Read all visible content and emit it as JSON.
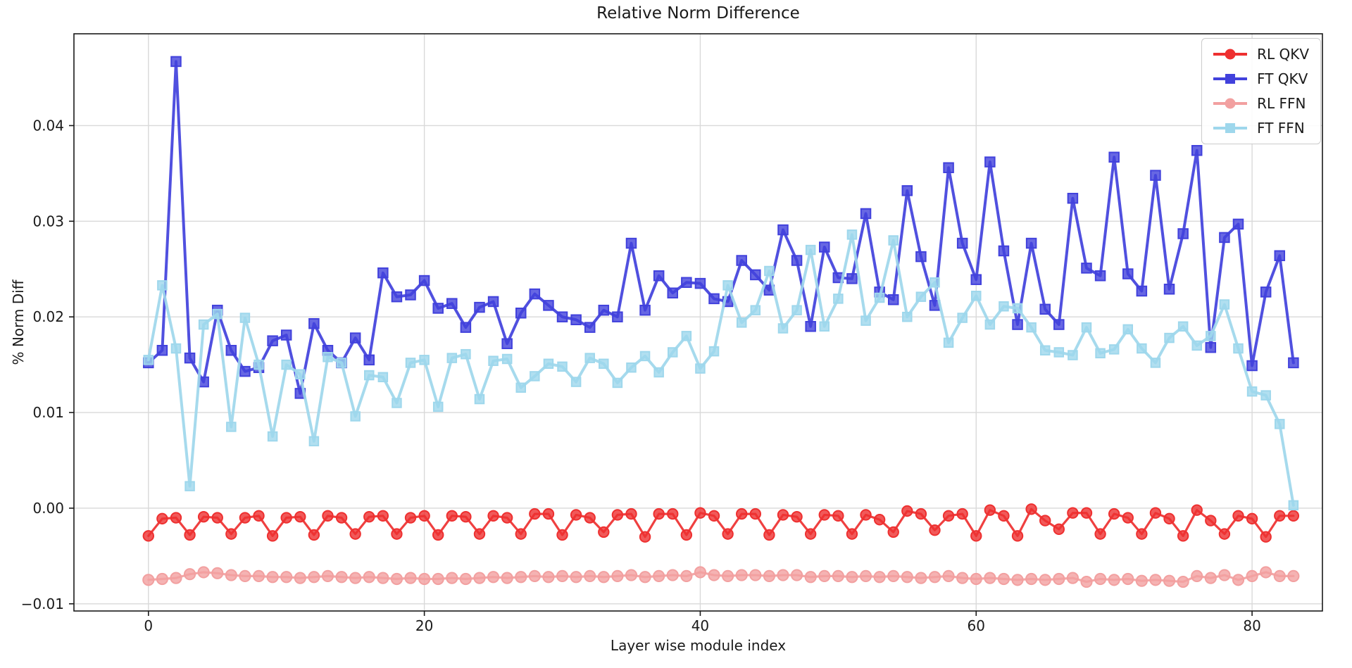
{
  "page_title": "Relative Norm Difference",
  "chart_data": {
    "type": "line",
    "title": "Relative Norm Difference",
    "xlabel": "Layer wise module index",
    "ylabel": "% Norm Diff",
    "grid": true,
    "legend_position": "upper right",
    "xlim": [
      -5.4,
      85.1
    ],
    "ylim": [
      -0.01075,
      0.0496
    ],
    "xticks": {
      "values": [
        0,
        20,
        40,
        60,
        80
      ],
      "labels": [
        "0",
        "20",
        "40",
        "60",
        "80"
      ]
    },
    "yticks": {
      "values": [
        -0.01,
        0.0,
        0.01,
        0.02,
        0.03,
        0.04
      ],
      "labels": [
        "−0.01",
        "0.00",
        "0.01",
        "0.02",
        "0.03",
        "0.04"
      ]
    },
    "x": [
      0,
      1,
      2,
      3,
      4,
      5,
      6,
      7,
      8,
      9,
      10,
      11,
      12,
      13,
      14,
      15,
      16,
      17,
      18,
      19,
      20,
      21,
      22,
      23,
      24,
      25,
      26,
      27,
      28,
      29,
      30,
      31,
      32,
      33,
      34,
      35,
      36,
      37,
      38,
      39,
      40,
      41,
      42,
      43,
      44,
      45,
      46,
      47,
      48,
      49,
      50,
      51,
      52,
      53,
      54,
      55,
      56,
      57,
      58,
      59,
      60,
      61,
      62,
      63,
      64,
      65,
      66,
      67,
      68,
      69,
      70,
      71,
      72,
      73,
      74,
      75,
      76,
      77,
      78,
      79,
      80,
      81,
      82,
      83
    ],
    "series": [
      {
        "name": "RL QKV",
        "color": "#ee3030",
        "marker": "circle",
        "values": [
          -0.0029,
          -0.0011,
          -0.001,
          -0.0028,
          -0.0009,
          -0.001,
          -0.0027,
          -0.001,
          -0.0008,
          -0.0029,
          -0.001,
          -0.0009,
          -0.0028,
          -0.0008,
          -0.001,
          -0.0027,
          -0.0009,
          -0.0008,
          -0.0027,
          -0.001,
          -0.0008,
          -0.0028,
          -0.0008,
          -0.0009,
          -0.0027,
          -0.0008,
          -0.001,
          -0.0027,
          -0.0006,
          -0.0006,
          -0.0028,
          -0.0007,
          -0.001,
          -0.0025,
          -0.0007,
          -0.0006,
          -0.003,
          -0.0006,
          -0.0006,
          -0.0028,
          -0.0005,
          -0.0008,
          -0.0027,
          -0.0006,
          -0.0006,
          -0.0028,
          -0.0007,
          -0.0009,
          -0.0027,
          -0.0007,
          -0.0008,
          -0.0027,
          -0.0007,
          -0.0012,
          -0.0025,
          -0.0003,
          -0.0006,
          -0.0023,
          -0.0008,
          -0.0006,
          -0.0029,
          -0.0002,
          -0.0008,
          -0.0029,
          -0.0001,
          -0.0013,
          -0.0022,
          -0.0005,
          -0.0005,
          -0.0027,
          -0.0006,
          -0.001,
          -0.0027,
          -0.0005,
          -0.0011,
          -0.0029,
          -0.0002,
          -0.0013,
          -0.0027,
          -0.0008,
          -0.0011,
          -0.003,
          -0.0008,
          -0.0008
        ]
      },
      {
        "name": "FT QKV",
        "color": "#4141dc",
        "marker": "square",
        "values": [
          0.0152,
          0.0165,
          0.0467,
          0.0157,
          0.0132,
          0.0207,
          0.0165,
          0.0143,
          0.0147,
          0.0175,
          0.0181,
          0.012,
          0.0193,
          0.0165,
          0.0152,
          0.0178,
          0.0155,
          0.0246,
          0.0221,
          0.0223,
          0.0238,
          0.0209,
          0.0214,
          0.0189,
          0.021,
          0.0216,
          0.0172,
          0.0204,
          0.0224,
          0.0212,
          0.02,
          0.0197,
          0.0189,
          0.0207,
          0.02,
          0.0277,
          0.0207,
          0.0243,
          0.0225,
          0.0236,
          0.0235,
          0.0219,
          0.0216,
          0.0259,
          0.0244,
          0.0228,
          0.0291,
          0.0259,
          0.019,
          0.0273,
          0.0241,
          0.024,
          0.0308,
          0.0226,
          0.0218,
          0.0332,
          0.0263,
          0.0212,
          0.0356,
          0.0277,
          0.0239,
          0.0362,
          0.0269,
          0.0192,
          0.0277,
          0.0208,
          0.0192,
          0.0324,
          0.0251,
          0.0243,
          0.0367,
          0.0245,
          0.0227,
          0.0348,
          0.0229,
          0.0287,
          0.0374,
          0.0168,
          0.0283,
          0.0297,
          0.0149,
          0.0226,
          0.0264,
          0.0152
        ]
      },
      {
        "name": "RL FFN",
        "color": "#f2a0a0",
        "marker": "circle",
        "values": [
          -0.0075,
          -0.0074,
          -0.0073,
          -0.0069,
          -0.0067,
          -0.0068,
          -0.007,
          -0.0071,
          -0.0071,
          -0.0072,
          -0.0072,
          -0.0073,
          -0.0072,
          -0.0071,
          -0.0072,
          -0.0073,
          -0.0072,
          -0.0073,
          -0.0074,
          -0.0073,
          -0.0074,
          -0.0074,
          -0.0073,
          -0.0074,
          -0.0073,
          -0.0072,
          -0.0073,
          -0.0072,
          -0.0071,
          -0.0072,
          -0.0071,
          -0.0072,
          -0.0071,
          -0.0072,
          -0.0071,
          -0.007,
          -0.0072,
          -0.0071,
          -0.007,
          -0.0071,
          -0.0067,
          -0.007,
          -0.0071,
          -0.007,
          -0.007,
          -0.0071,
          -0.007,
          -0.007,
          -0.0072,
          -0.0071,
          -0.0071,
          -0.0072,
          -0.0071,
          -0.0072,
          -0.0071,
          -0.0072,
          -0.0073,
          -0.0072,
          -0.0071,
          -0.0073,
          -0.0074,
          -0.0073,
          -0.0074,
          -0.0075,
          -0.0074,
          -0.0075,
          -0.0074,
          -0.0073,
          -0.0077,
          -0.0074,
          -0.0075,
          -0.0074,
          -0.0076,
          -0.0075,
          -0.0076,
          -0.0077,
          -0.0071,
          -0.0073,
          -0.007,
          -0.0075,
          -0.0071,
          -0.0067,
          -0.0071,
          -0.0071
        ]
      },
      {
        "name": "FT FFN",
        "color": "#9ed7ec",
        "marker": "square",
        "values": [
          0.0155,
          0.0233,
          0.0167,
          0.0023,
          0.0192,
          0.0203,
          0.0085,
          0.0199,
          0.015,
          0.0075,
          0.015,
          0.014,
          0.007,
          0.0158,
          0.0152,
          0.0096,
          0.0139,
          0.0137,
          0.011,
          0.0152,
          0.0155,
          0.0106,
          0.0157,
          0.0161,
          0.0114,
          0.0154,
          0.0156,
          0.0126,
          0.0138,
          0.0151,
          0.0148,
          0.0132,
          0.0157,
          0.0151,
          0.0131,
          0.0147,
          0.0159,
          0.0142,
          0.0163,
          0.018,
          0.0146,
          0.0164,
          0.0233,
          0.0194,
          0.0207,
          0.0248,
          0.0188,
          0.0207,
          0.027,
          0.019,
          0.0219,
          0.0286,
          0.0196,
          0.022,
          0.028,
          0.02,
          0.0221,
          0.0236,
          0.0173,
          0.0199,
          0.0222,
          0.0192,
          0.0211,
          0.0209,
          0.0189,
          0.0165,
          0.0163,
          0.016,
          0.0189,
          0.0162,
          0.0166,
          0.0187,
          0.0167,
          0.0152,
          0.0178,
          0.019,
          0.017,
          0.018,
          0.0213,
          0.0167,
          0.0122,
          0.0118,
          0.0088,
          0.0003
        ]
      }
    ],
    "colors": {
      "grid": "#d9d9d9",
      "axis": "#1a1a1a",
      "background": "#ffffff"
    }
  }
}
